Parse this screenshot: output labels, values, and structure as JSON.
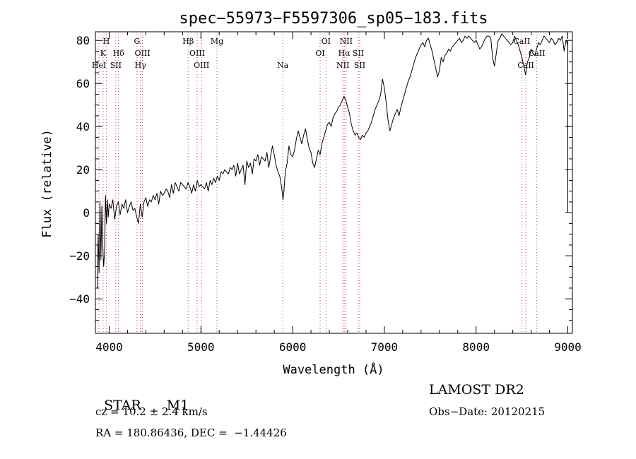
{
  "chart_data": {
    "type": "line",
    "title": "spec−55973−F5597306_sp05−183.fits",
    "xlabel": "Wavelength (Å)",
    "ylabel": "Flux (relative)",
    "xlim": [
      3850,
      9050
    ],
    "ylim": [
      -56,
      84
    ],
    "xticks": [
      4000,
      5000,
      6000,
      7000,
      8000,
      9000
    ],
    "xtick_labels": [
      "4000",
      "5000",
      "6000",
      "7000",
      "8000",
      "9000"
    ],
    "yticks": [
      -40,
      -20,
      0,
      20,
      40,
      60,
      80
    ],
    "ytick_labels": [
      "−40",
      "−20",
      "0",
      "20",
      "40",
      "60",
      "80"
    ],
    "grid": false,
    "series": [
      {
        "color": "#000000",
        "x": [
          3870,
          3880,
          3890,
          3900,
          3910,
          3920,
          3930,
          3940,
          3950,
          3960,
          3970,
          3980,
          3990,
          4000,
          4020,
          4040,
          4060,
          4080,
          4100,
          4120,
          4140,
          4160,
          4180,
          4200,
          4220,
          4240,
          4260,
          4280,
          4300,
          4320,
          4340,
          4360,
          4380,
          4400,
          4420,
          4440,
          4460,
          4480,
          4500,
          4520,
          4540,
          4560,
          4580,
          4600,
          4620,
          4640,
          4660,
          4680,
          4700,
          4720,
          4740,
          4760,
          4780,
          4800,
          4820,
          4840,
          4860,
          4880,
          4900,
          4920,
          4940,
          4960,
          4980,
          5000,
          5020,
          5040,
          5060,
          5080,
          5100,
          5120,
          5140,
          5160,
          5180,
          5200,
          5220,
          5240,
          5260,
          5280,
          5300,
          5320,
          5340,
          5360,
          5380,
          5400,
          5420,
          5440,
          5460,
          5480,
          5500,
          5520,
          5540,
          5560,
          5580,
          5600,
          5620,
          5640,
          5660,
          5680,
          5700,
          5720,
          5740,
          5760,
          5780,
          5800,
          5820,
          5840,
          5860,
          5880,
          5895,
          5905,
          5920,
          5940,
          5960,
          5980,
          6000,
          6020,
          6040,
          6060,
          6080,
          6100,
          6120,
          6140,
          6160,
          6180,
          6200,
          6220,
          6240,
          6260,
          6280,
          6300,
          6320,
          6340,
          6360,
          6380,
          6400,
          6420,
          6440,
          6460,
          6480,
          6500,
          6520,
          6540,
          6560,
          6580,
          6600,
          6620,
          6640,
          6660,
          6680,
          6700,
          6720,
          6740,
          6760,
          6780,
          6800,
          6820,
          6840,
          6860,
          6880,
          6900,
          6920,
          6940,
          6960,
          6980,
          7000,
          7020,
          7040,
          7060,
          7080,
          7100,
          7120,
          7140,
          7160,
          7180,
          7200,
          7220,
          7240,
          7260,
          7280,
          7300,
          7320,
          7340,
          7360,
          7380,
          7400,
          7420,
          7440,
          7460,
          7480,
          7500,
          7520,
          7540,
          7560,
          7580,
          7600,
          7620,
          7640,
          7660,
          7680,
          7700,
          7720,
          7740,
          7760,
          7780,
          7800,
          7820,
          7840,
          7860,
          7880,
          7900,
          7920,
          7940,
          7960,
          7980,
          8000,
          8020,
          8040,
          8060,
          8080,
          8100,
          8120,
          8140,
          8160,
          8180,
          8200,
          8220,
          8240,
          8260,
          8280,
          8300,
          8320,
          8340,
          8360,
          8380,
          8400,
          8420,
          8440,
          8460,
          8480,
          8500,
          8520,
          8540,
          8560,
          8580,
          8600,
          8620,
          8640,
          8660,
          8680,
          8700,
          8720,
          8740,
          8760,
          8780,
          8800,
          8820,
          8840,
          8860,
          8880,
          8900,
          8920,
          8940,
          8960,
          8980,
          9000,
          9000,
          9000,
          9000
        ],
        "y": [
          -35,
          -10,
          -28,
          5,
          -22,
          3,
          -15,
          -25,
          -18,
          8,
          -5,
          6,
          -2,
          4,
          2,
          6,
          -3,
          3,
          5,
          -1,
          4,
          2,
          6,
          0,
          3,
          5,
          1,
          2,
          -2,
          -5,
          4,
          -2,
          5,
          7,
          3,
          6,
          5,
          8,
          6,
          9,
          4,
          10,
          8,
          9,
          11,
          10,
          7,
          13,
          9,
          14,
          12,
          10,
          14,
          13,
          12,
          11,
          14,
          12,
          9,
          13,
          10,
          15,
          12,
          13,
          12,
          11,
          14,
          10,
          15,
          13,
          16,
          14,
          17,
          15,
          19,
          18,
          20,
          19,
          18,
          21,
          20,
          22,
          17,
          23,
          18,
          20,
          22,
          13,
          24,
          21,
          23,
          18,
          25,
          24,
          27,
          22,
          26,
          25,
          24,
          28,
          21,
          26,
          31,
          27,
          22,
          19,
          17,
          12,
          6,
          10,
          19,
          23,
          31,
          27,
          26,
          29,
          34,
          38,
          35,
          32,
          36,
          39,
          34,
          30,
          28,
          23,
          21,
          25,
          29,
          27,
          32,
          35,
          38,
          41,
          42,
          40,
          44,
          46,
          47,
          49,
          50,
          52,
          54,
          52,
          49,
          46,
          41,
          38,
          36,
          37,
          35,
          34,
          36,
          35,
          37,
          38,
          40,
          42,
          45,
          48,
          50,
          52,
          55,
          62,
          58,
          51,
          43,
          38,
          41,
          44,
          46,
          48,
          45,
          49,
          52,
          55,
          58,
          61,
          63,
          66,
          69,
          72,
          74,
          76,
          78,
          79,
          77,
          80,
          81,
          78,
          75,
          71,
          67,
          63,
          66,
          72,
          70,
          73,
          74,
          76,
          75,
          77,
          78,
          79,
          80,
          81,
          79,
          80,
          82,
          81,
          82,
          81,
          80,
          79,
          80,
          78,
          76,
          77,
          79,
          81,
          82,
          82,
          81,
          72,
          68,
          74,
          80,
          81,
          83,
          82,
          81,
          80,
          79,
          78,
          79,
          82,
          80,
          78,
          75,
          72,
          68,
          64,
          70,
          72,
          76,
          74,
          73,
          76,
          79,
          78,
          80,
          82,
          81,
          80,
          79,
          81,
          80,
          78,
          79,
          81,
          80,
          82,
          75,
          80,
          78,
          80,
          40,
          0
        ]
      }
    ],
    "line_markers": [
      {
        "label": "H",
        "wavelength": 3969,
        "row": 0
      },
      {
        "label": "K",
        "wavelength": 3934,
        "row": 1
      },
      {
        "label": "HeI",
        "wavelength": 3889,
        "row": 2
      },
      {
        "label": "Hδ",
        "wavelength": 4102,
        "row": 1
      },
      {
        "label": "SII",
        "wavelength": 4072,
        "row": 2
      },
      {
        "label": "G",
        "wavelength": 4304,
        "row": 0
      },
      {
        "label": "OIII",
        "wavelength": 4363,
        "row": 1
      },
      {
        "label": "Hγ",
        "wavelength": 4341,
        "row": 2
      },
      {
        "label": "Hβ",
        "wavelength": 4861,
        "row": 0
      },
      {
        "label": "OIII",
        "wavelength": 4959,
        "row": 1
      },
      {
        "label": "OIII",
        "wavelength": 5007,
        "row": 2
      },
      {
        "label": "Mg",
        "wavelength": 5175,
        "row": 0
      },
      {
        "label": "Na",
        "wavelength": 5893,
        "row": 2
      },
      {
        "label": "OI",
        "wavelength": 6300,
        "row": 1
      },
      {
        "label": "OI",
        "wavelength": 6364,
        "row": 0
      },
      {
        "label": "NII",
        "wavelength": 6583,
        "row": 0
      },
      {
        "label": "Hα",
        "wavelength": 6563,
        "row": 1
      },
      {
        "label": "NII",
        "wavelength": 6548,
        "row": 2
      },
      {
        "label": "SII",
        "wavelength": 6716,
        "row": 1
      },
      {
        "label": "SII",
        "wavelength": 6731,
        "row": 2
      },
      {
        "label": "CaII",
        "wavelength": 8498,
        "row": 0
      },
      {
        "label": "CaII",
        "wavelength": 8542,
        "row": 2
      },
      {
        "label": "CaII",
        "wavelength": 8662,
        "row": 1
      }
    ]
  },
  "info": {
    "class_label": "STAR",
    "subclass_label": "M1",
    "survey": "LAMOST DR2",
    "cz": "cz = 10.2 ± 2.4 km/s",
    "obs_date": "Obs−Date: 20120215",
    "coords": "RA = 180.86436, DEC =  −1.44426"
  }
}
